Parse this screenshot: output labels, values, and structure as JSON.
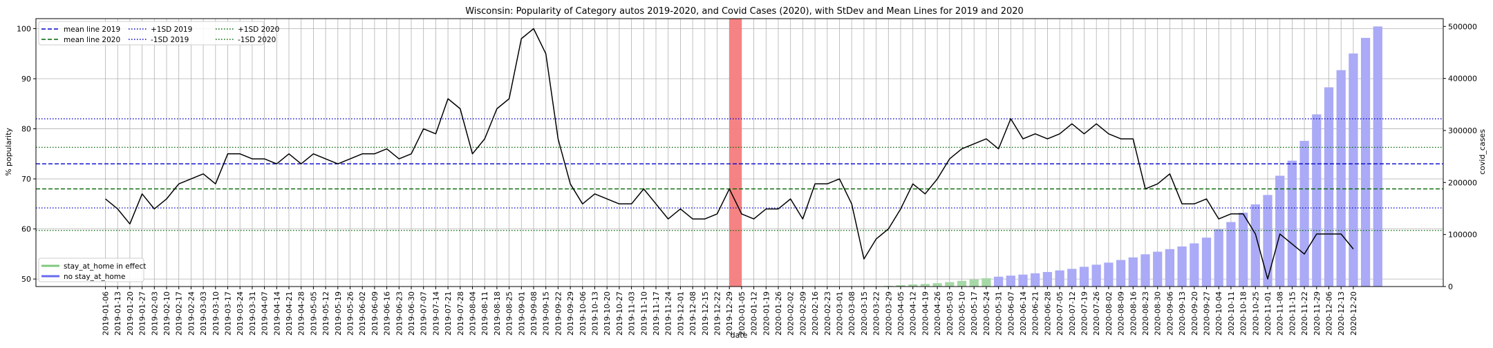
{
  "chart_data": {
    "type": "line",
    "title": "Wisconsin: Popularity of Category autos 2019-2020, and Covid Cases (2020), with StDev and Mean Lines for 2019 and 2020",
    "xlabel": "date",
    "ylabel": "% popularity",
    "y2label": "covid_cases",
    "ylim": [
      48.5,
      102
    ],
    "y2lim": [
      0,
      515000
    ],
    "yticks": [
      50,
      60,
      70,
      80,
      90,
      100
    ],
    "y2ticks": [
      0,
      100000,
      200000,
      300000,
      400000,
      500000
    ],
    "y2tick_labels": [
      "0",
      "100000",
      "200000",
      "300000",
      "400000",
      "500000"
    ],
    "grid": true,
    "categories": [
      "2019-01-06",
      "2019-01-13",
      "2019-01-20",
      "2019-01-27",
      "2019-02-03",
      "2019-02-10",
      "2019-02-17",
      "2019-02-24",
      "2019-03-03",
      "2019-03-10",
      "2019-03-17",
      "2019-03-24",
      "2019-03-31",
      "2019-04-07",
      "2019-04-14",
      "2019-04-21",
      "2019-04-28",
      "2019-05-05",
      "2019-05-12",
      "2019-05-19",
      "2019-05-26",
      "2019-06-02",
      "2019-06-09",
      "2019-06-16",
      "2019-06-23",
      "2019-06-30",
      "2019-07-07",
      "2019-07-14",
      "2019-07-21",
      "2019-07-28",
      "2019-08-04",
      "2019-08-11",
      "2019-08-18",
      "2019-08-25",
      "2019-09-01",
      "2019-09-08",
      "2019-09-15",
      "2019-09-22",
      "2019-09-29",
      "2019-10-06",
      "2019-10-13",
      "2019-10-20",
      "2019-10-27",
      "2019-11-03",
      "2019-11-10",
      "2019-11-17",
      "2019-11-24",
      "2019-12-01",
      "2019-12-08",
      "2019-12-15",
      "2019-12-22",
      "2019-12-29",
      "2020-01-05",
      "2020-01-12",
      "2020-01-19",
      "2020-01-26",
      "2020-02-02",
      "2020-02-09",
      "2020-02-16",
      "2020-02-23",
      "2020-03-01",
      "2020-03-08",
      "2020-03-15",
      "2020-03-22",
      "2020-03-29",
      "2020-04-05",
      "2020-04-12",
      "2020-04-19",
      "2020-04-26",
      "2020-05-03",
      "2020-05-10",
      "2020-05-17",
      "2020-05-24",
      "2020-05-31",
      "2020-06-07",
      "2020-06-14",
      "2020-06-21",
      "2020-06-28",
      "2020-07-05",
      "2020-07-12",
      "2020-07-19",
      "2020-07-26",
      "2020-08-02",
      "2020-08-09",
      "2020-08-16",
      "2020-08-23",
      "2020-08-30",
      "2020-09-06",
      "2020-09-13",
      "2020-09-20",
      "2020-09-27",
      "2020-10-04",
      "2020-10-11",
      "2020-10-18",
      "2020-10-25",
      "2020-11-01",
      "2020-11-08",
      "2020-11-15",
      "2020-11-22",
      "2020-11-29",
      "2020-12-06",
      "2020-12-13",
      "2020-12-20"
    ],
    "popularity": [
      66,
      64,
      61,
      67,
      64,
      66,
      69,
      70,
      71,
      69,
      75,
      75,
      74,
      74,
      73,
      75,
      73,
      75,
      74,
      73,
      74,
      75,
      75,
      76,
      74,
      75,
      80,
      79,
      86,
      84,
      75,
      78,
      84,
      86,
      98,
      100,
      95,
      78,
      69,
      65,
      67,
      66,
      65,
      65,
      68,
      65,
      62,
      64,
      62,
      62,
      63,
      68,
      63,
      62,
      64,
      64,
      66,
      62,
      69,
      69,
      70,
      65,
      54,
      58,
      60,
      64,
      69,
      67,
      70,
      74,
      76,
      77,
      78,
      76,
      82,
      78,
      79,
      78,
      79,
      81,
      79,
      81,
      79,
      78,
      78,
      68,
      69,
      71,
      65,
      65,
      66,
      62,
      63,
      63,
      59,
      50,
      59,
      57,
      55,
      59,
      59,
      59,
      56
    ],
    "covid_cases": [
      0,
      0,
      0,
      0,
      0,
      0,
      0,
      0,
      0,
      0,
      0,
      0,
      0,
      0,
      0,
      0,
      0,
      0,
      0,
      0,
      0,
      0,
      0,
      0,
      0,
      0,
      0,
      0,
      0,
      0,
      0,
      0,
      0,
      0,
      0,
      0,
      0,
      0,
      0,
      0,
      0,
      0,
      0,
      0,
      0,
      0,
      0,
      0,
      0,
      0,
      0,
      0,
      0,
      0,
      0,
      0,
      0,
      0,
      0,
      0,
      0,
      0,
      0,
      0,
      1300,
      2700,
      4000,
      5000,
      6500,
      8500,
      11000,
      13500,
      16000,
      19000,
      21000,
      23000,
      25500,
      28000,
      31000,
      34000,
      38000,
      42000,
      46000,
      51000,
      56000,
      62000,
      67000,
      72000,
      77000,
      83000,
      94000,
      110000,
      124000,
      142000,
      158000,
      176000,
      213000,
      242000,
      280000,
      331000,
      383000,
      416000,
      448000,
      478000,
      500000
    ],
    "stay_at_home_range": [
      "2020-03-29",
      "2020-05-24"
    ],
    "highlight_period": [
      "2019-12-29",
      "2020-01-05"
    ],
    "reference_lines": [
      {
        "name": "mean line 2019",
        "value": 73.0,
        "color": "#0000cc",
        "style": "dashed"
      },
      {
        "name": "mean line 2020",
        "value": 68.0,
        "color": "#006400",
        "style": "dashed"
      },
      {
        "name": "+1SD 2019",
        "value": 82.0,
        "color": "#0000cc",
        "style": "dotted"
      },
      {
        "name": "-1SD 2019",
        "value": 64.2,
        "color": "#0000cc",
        "style": "dotted"
      },
      {
        "name": "+1SD 2020",
        "value": 76.3,
        "color": "#006400",
        "style": "dotted"
      },
      {
        "name": "-1SD 2020",
        "value": 59.7,
        "color": "#006400",
        "style": "dotted"
      }
    ],
    "legend_top": {
      "placement": "top-left",
      "entries": [
        "mean line 2019",
        "mean line 2020",
        "+1SD 2019",
        "-1SD 2019",
        "+1SD 2020",
        "-1SD 2020"
      ]
    },
    "legend_bottom": {
      "placement": "lower-left",
      "entries": [
        {
          "name": "stay_at_home in effect",
          "color": "#7fc97f"
        },
        {
          "name": "no stay_at_home",
          "color": "#6a6af0"
        }
      ]
    },
    "colors": {
      "line": "#000000",
      "bar_stay_at_home": "#a6d8a6",
      "bar_no_stay_at_home": "#aaaaf6",
      "highlight": "#f47c7c",
      "grid": "#b0b0b0"
    }
  }
}
